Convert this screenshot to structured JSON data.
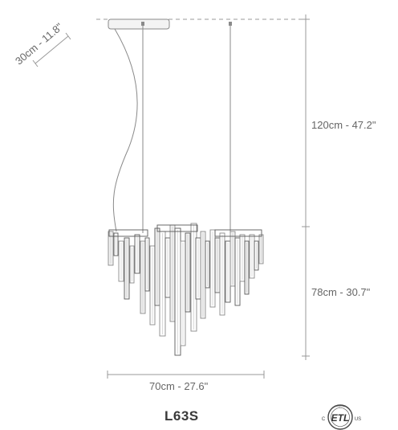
{
  "dimensions": {
    "canopy_diameter": "30cm - 11.8\"",
    "cable_length": "120cm - 47.2\"",
    "fixture_height": "78cm - 30.7\"",
    "fixture_width": "70cm - 27.6\""
  },
  "model": "L63S",
  "certification": {
    "mark": "ETL",
    "top_text": "INTERTEK",
    "left_text": "C",
    "right_text": "US"
  },
  "colors": {
    "line": "#888888",
    "dim_line": "#999999",
    "crystal": "#8a8a8a",
    "crystal_dark": "#5a5a5a"
  }
}
